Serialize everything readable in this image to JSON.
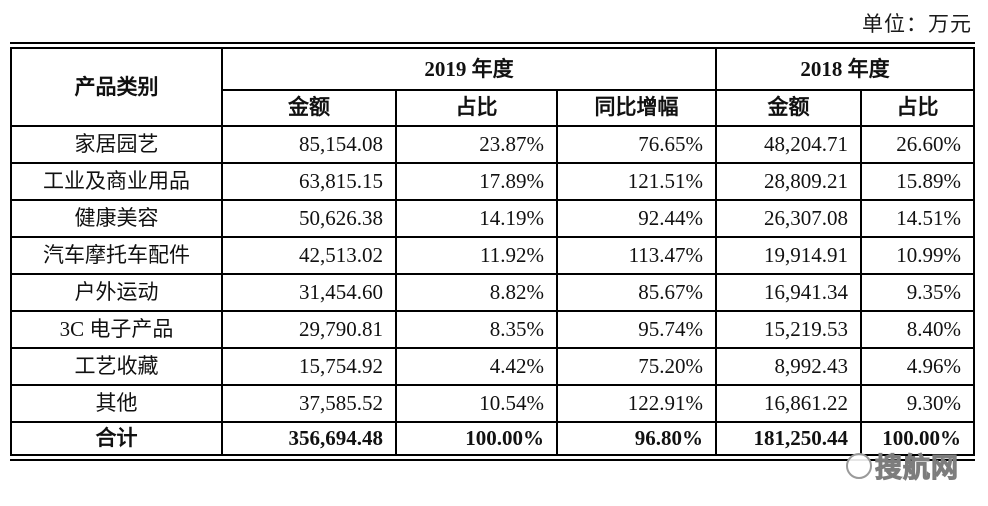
{
  "unit_label": "单位：万元",
  "watermark": {
    "text": "搜航网"
  },
  "table": {
    "header": {
      "category": "产品类别",
      "year2019": "2019 年度",
      "year2018": "2018 年度"
    },
    "sub_headers": [
      "金额",
      "占比",
      "同比增幅",
      "金额",
      "占比"
    ],
    "rows": [
      {
        "category": "家居园艺",
        "values": [
          "85,154.08",
          "23.87%",
          "76.65%",
          "48,204.71",
          "26.60%"
        ]
      },
      {
        "category": "工业及商业用品",
        "values": [
          "63,815.15",
          "17.89%",
          "121.51%",
          "28,809.21",
          "15.89%"
        ]
      },
      {
        "category": "健康美容",
        "values": [
          "50,626.38",
          "14.19%",
          "92.44%",
          "26,307.08",
          "14.51%"
        ]
      },
      {
        "category": "汽车摩托车配件",
        "values": [
          "42,513.02",
          "11.92%",
          "113.47%",
          "19,914.91",
          "10.99%"
        ]
      },
      {
        "category": "户外运动",
        "values": [
          "31,454.60",
          "8.82%",
          "85.67%",
          "16,941.34",
          "9.35%"
        ]
      },
      {
        "category": "3C 电子产品",
        "values": [
          "29,790.81",
          "8.35%",
          "95.74%",
          "15,219.53",
          "8.40%"
        ]
      },
      {
        "category": "工艺收藏",
        "values": [
          "15,754.92",
          "4.42%",
          "75.20%",
          "8,992.43",
          "4.96%"
        ]
      },
      {
        "category": "其他",
        "values": [
          "37,585.52",
          "10.54%",
          "122.91%",
          "16,861.22",
          "9.30%"
        ]
      }
    ],
    "total_row": {
      "category": "合计",
      "values": [
        "356,694.48",
        "100.00%",
        "96.80%",
        "181,250.44",
        "100.00%"
      ]
    }
  }
}
